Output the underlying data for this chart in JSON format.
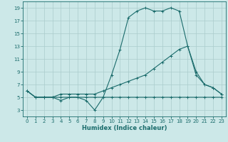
{
  "xlabel": "Humidex (Indice chaleur)",
  "background_color": "#cce8e8",
  "grid_color": "#aacccc",
  "line_color": "#1a6b6b",
  "xlim": [
    -0.5,
    23.5
  ],
  "ylim": [
    2.0,
    20.0
  ],
  "yticks": [
    3,
    5,
    7,
    9,
    11,
    13,
    15,
    17,
    19
  ],
  "xticks": [
    0,
    1,
    2,
    3,
    4,
    5,
    6,
    7,
    8,
    9,
    10,
    11,
    12,
    13,
    14,
    15,
    16,
    17,
    18,
    19,
    20,
    21,
    22,
    23
  ],
  "line1_y": [
    6,
    5,
    5,
    5,
    5,
    5,
    5,
    5,
    5,
    5,
    5,
    5,
    5,
    5,
    5,
    5,
    5,
    5,
    5,
    5,
    5,
    5,
    5,
    5
  ],
  "line2_y": [
    6,
    5,
    5,
    5,
    5.5,
    5.5,
    5.5,
    5.5,
    5.5,
    6.0,
    6.5,
    7.0,
    7.5,
    8.0,
    8.5,
    9.5,
    10.5,
    11.5,
    12.5,
    13.0,
    8.5,
    7.0,
    6.5,
    5.5
  ],
  "line3_y": [
    6,
    5,
    5,
    5,
    4.5,
    5,
    5,
    4.5,
    3.0,
    5.0,
    8.5,
    12.5,
    17.5,
    18.5,
    19.0,
    18.5,
    18.5,
    19.0,
    18.5,
    13.0,
    9.0,
    7.0,
    6.5,
    5.5
  ],
  "tick_fontsize": 5.0,
  "xlabel_fontsize": 6.0
}
